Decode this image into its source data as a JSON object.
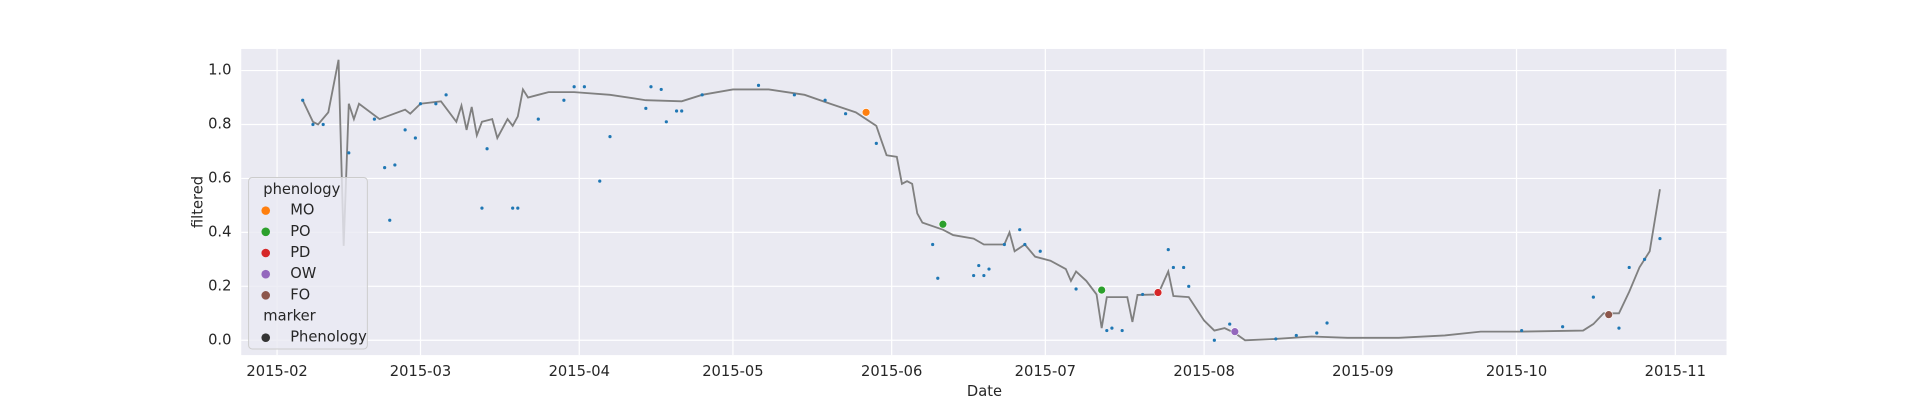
{
  "chart_data": {
    "type": "line",
    "x_label": "Date",
    "y_label": "filtered",
    "xlim": [
      "2015-01-25",
      "2015-11-11"
    ],
    "ylim": [
      -0.055,
      1.08
    ],
    "xticks": [
      {
        "value": "2015-02-01",
        "label": "2015-02"
      },
      {
        "value": "2015-03-01",
        "label": "2015-03"
      },
      {
        "value": "2015-04-01",
        "label": "2015-04"
      },
      {
        "value": "2015-05-01",
        "label": "2015-05"
      },
      {
        "value": "2015-06-01",
        "label": "2015-06"
      },
      {
        "value": "2015-07-01",
        "label": "2015-07"
      },
      {
        "value": "2015-08-01",
        "label": "2015-08"
      },
      {
        "value": "2015-09-01",
        "label": "2015-09"
      },
      {
        "value": "2015-10-01",
        "label": "2015-10"
      },
      {
        "value": "2015-11-01",
        "label": "2015-11"
      }
    ],
    "yticks": [
      {
        "value": 0,
        "label": "0.0"
      },
      {
        "value": 0.2,
        "label": "0.2"
      },
      {
        "value": 0.4,
        "label": "0.4"
      },
      {
        "value": 0.6,
        "label": "0.6"
      },
      {
        "value": 0.8,
        "label": "0.8"
      },
      {
        "value": 1,
        "label": "1.0"
      }
    ],
    "grid": true,
    "legend_position": "lower left",
    "line": {
      "color": "#808080",
      "x": [
        "2015-02-06",
        "2015-02-08",
        "2015-02-09",
        "2015-02-11",
        "2015-02-13",
        "2015-02-14",
        "2015-02-15",
        "2015-02-16",
        "2015-02-17",
        "2015-02-21",
        "2015-02-26",
        "2015-02-27",
        "2015-03-01",
        "2015-03-05",
        "2015-03-08",
        "2015-03-09",
        "2015-03-10",
        "2015-03-11",
        "2015-03-12",
        "2015-03-13",
        "2015-03-15",
        "2015-03-16",
        "2015-03-18",
        "2015-03-19",
        "2015-03-20",
        "2015-03-21",
        "2015-03-22",
        "2015-03-24",
        "2015-03-26",
        "2015-03-31",
        "2015-04-07",
        "2015-04-14",
        "2015-04-21",
        "2015-04-25",
        "2015-05-01",
        "2015-05-08",
        "2015-05-15",
        "2015-05-20",
        "2015-05-25",
        "2015-05-29",
        "2015-05-30",
        "2015-05-31",
        "2015-06-02",
        "2015-06-03",
        "2015-06-04",
        "2015-06-05",
        "2015-06-06",
        "2015-06-07",
        "2015-06-11",
        "2015-06-13",
        "2015-06-17",
        "2015-06-19",
        "2015-06-23",
        "2015-06-24",
        "2015-06-25",
        "2015-06-27",
        "2015-06-29",
        "2015-07-02",
        "2015-07-05",
        "2015-07-06",
        "2015-07-07",
        "2015-07-09",
        "2015-07-11",
        "2015-07-12",
        "2015-07-13",
        "2015-07-17",
        "2015-07-18",
        "2015-07-19",
        "2015-07-23",
        "2015-07-25",
        "2015-07-26",
        "2015-07-29",
        "2015-08-01",
        "2015-08-03",
        "2015-08-05",
        "2015-08-07",
        "2015-08-09",
        "2015-08-15",
        "2015-08-22",
        "2015-08-29",
        "2015-09-08",
        "2015-09-17",
        "2015-09-24",
        "2015-10-02",
        "2015-10-14",
        "2015-10-16",
        "2015-10-18",
        "2015-10-21",
        "2015-10-23",
        "2015-10-25",
        "2015-10-27",
        "2015-10-29"
      ],
      "values": [
        0.89,
        0.81,
        0.8,
        0.845,
        1.04,
        0.35,
        0.877,
        0.82,
        0.877,
        0.82,
        0.855,
        0.84,
        0.877,
        0.886,
        0.81,
        0.87,
        0.78,
        0.865,
        0.76,
        0.81,
        0.82,
        0.75,
        0.82,
        0.795,
        0.83,
        0.93,
        0.9,
        0.91,
        0.92,
        0.92,
        0.91,
        0.89,
        0.886,
        0.91,
        0.93,
        0.93,
        0.91,
        0.877,
        0.845,
        0.795,
        0.74,
        0.686,
        0.68,
        0.58,
        0.59,
        0.58,
        0.47,
        0.436,
        0.41,
        0.39,
        0.377,
        0.355,
        0.355,
        0.4,
        0.33,
        0.355,
        0.31,
        0.295,
        0.264,
        0.22,
        0.255,
        0.22,
        0.17,
        0.045,
        0.16,
        0.16,
        0.068,
        0.168,
        0.17,
        0.255,
        0.164,
        0.16,
        0.073,
        0.036,
        0.045,
        0.027,
        0.0,
        0.005,
        0.014,
        0.009,
        0.009,
        0.018,
        0.032,
        0.032,
        0.036,
        0.06,
        0.1,
        0.1,
        0.18,
        0.27,
        0.33,
        0.56
      ]
    },
    "points": {
      "color": "#1f77b4",
      "x": [
        "2015-02-06",
        "2015-02-08",
        "2015-02-10",
        "2015-02-15",
        "2015-02-20",
        "2015-02-22",
        "2015-02-23",
        "2015-02-24",
        "2015-02-26",
        "2015-02-28",
        "2015-03-01",
        "2015-03-04",
        "2015-03-06",
        "2015-03-13",
        "2015-03-14",
        "2015-03-19",
        "2015-03-20",
        "2015-03-24",
        "2015-03-29",
        "2015-03-31",
        "2015-04-02",
        "2015-04-05",
        "2015-04-07",
        "2015-04-14",
        "2015-04-15",
        "2015-04-17",
        "2015-04-18",
        "2015-04-20",
        "2015-04-21",
        "2015-04-25",
        "2015-05-06",
        "2015-05-13",
        "2015-05-19",
        "2015-05-23",
        "2015-05-29",
        "2015-06-09",
        "2015-06-10",
        "2015-06-17",
        "2015-06-18",
        "2015-06-19",
        "2015-06-20",
        "2015-06-23",
        "2015-06-26",
        "2015-06-27",
        "2015-06-30",
        "2015-07-07",
        "2015-07-13",
        "2015-07-14",
        "2015-07-16",
        "2015-07-20",
        "2015-07-25",
        "2015-07-26",
        "2015-07-28",
        "2015-07-29",
        "2015-08-03",
        "2015-08-06",
        "2015-08-15",
        "2015-08-19",
        "2015-08-23",
        "2015-08-25",
        "2015-10-02",
        "2015-10-10",
        "2015-10-16",
        "2015-10-21",
        "2015-10-23",
        "2015-10-26",
        "2015-10-29"
      ],
      "values": [
        0.89,
        0.8,
        0.8,
        0.695,
        0.82,
        0.64,
        0.445,
        0.65,
        0.78,
        0.75,
        0.877,
        0.877,
        0.91,
        0.49,
        0.71,
        0.49,
        0.49,
        0.82,
        0.89,
        0.94,
        0.94,
        0.59,
        0.755,
        0.86,
        0.94,
        0.93,
        0.81,
        0.85,
        0.85,
        0.91,
        0.945,
        0.91,
        0.89,
        0.84,
        0.73,
        0.355,
        0.23,
        0.24,
        0.277,
        0.24,
        0.264,
        0.355,
        0.41,
        0.355,
        0.33,
        0.19,
        0.036,
        0.045,
        0.036,
        0.17,
        0.336,
        0.27,
        0.27,
        0.2,
        0.0,
        0.06,
        0.005,
        0.018,
        0.027,
        0.064,
        0.036,
        0.05,
        0.16,
        0.045,
        0.27,
        0.3,
        0.377
      ]
    },
    "legend_title": "phenology",
    "phenology": [
      {
        "name": "MO",
        "color": "#ff7f0e",
        "x": [
          "2015-05-27"
        ],
        "values": [
          0.845
        ]
      },
      {
        "name": "PO",
        "color": "#2ca02c",
        "x": [
          "2015-06-11",
          "2015-07-12"
        ],
        "values": [
          0.43,
          0.186
        ]
      },
      {
        "name": "PD",
        "color": "#d62728",
        "x": [
          "2015-07-23"
        ],
        "values": [
          0.177
        ]
      },
      {
        "name": "OW",
        "color": "#9467bd",
        "x": [
          "2015-08-07"
        ],
        "values": [
          0.032
        ]
      },
      {
        "name": "FO",
        "color": "#8c564b",
        "x": [
          "2015-10-19"
        ],
        "values": [
          0.095
        ]
      }
    ],
    "marker_title": "marker",
    "marker_entry": {
      "name": "Phenology",
      "color": "#333333"
    }
  }
}
